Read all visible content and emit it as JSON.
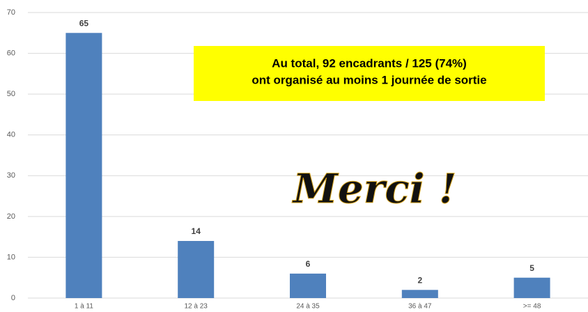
{
  "chart_data": {
    "type": "bar",
    "categories": [
      "1 à 11",
      "12 à 23",
      "24 à 35",
      "36 à 47",
      ">= 48"
    ],
    "values": [
      65,
      14,
      6,
      2,
      5
    ],
    "color": "#4f81bd",
    "ylim": [
      0,
      70
    ],
    "yticks": [
      0,
      10,
      20,
      30,
      40,
      50,
      60,
      70
    ],
    "grid": true,
    "annotations": [
      "Au total, 92 encadrants / 125 (74%)",
      "ont organisé au moins 1 journée de sortie",
      "Merci !"
    ]
  }
}
